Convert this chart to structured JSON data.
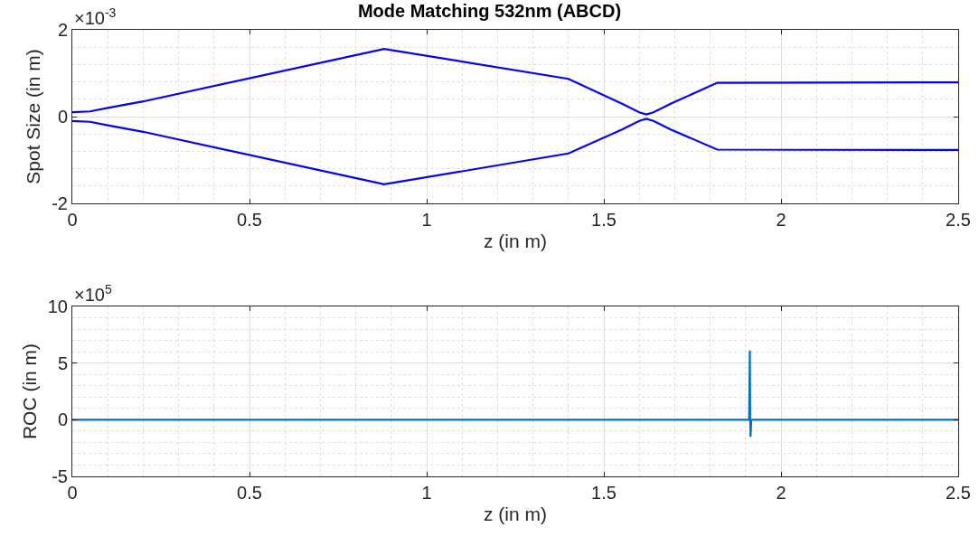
{
  "chart_data": [
    {
      "type": "line",
      "title": "Mode Matching 532nm (ABCD)",
      "xlabel": "z (in m)",
      "ylabel": "Spot Size (in m)",
      "annotations": [
        "×10$^{-3}$"
      ],
      "series": [
        {
          "color": "#0000ff",
          "x": [
            0,
            0.05,
            0.1,
            0.2,
            0.88,
            1.4,
            1.55,
            1.6,
            1.62,
            1.64,
            1.69,
            1.82,
            2.5
          ],
          "values": [
            0.1,
            0.12,
            0.2,
            0.35,
            1.56,
            0.87,
            0.3,
            0.1,
            0.05,
            0.1,
            0.3,
            0.78,
            0.79
          ]
        },
        {
          "color": "#0000ff",
          "x": [
            0,
            0.05,
            0.1,
            0.2,
            0.88,
            1.4,
            1.55,
            1.6,
            1.62,
            1.64,
            1.69,
            1.82,
            2.5
          ],
          "values": [
            -0.1,
            -0.12,
            -0.2,
            -0.35,
            -1.56,
            -0.85,
            -0.3,
            -0.1,
            -0.05,
            -0.1,
            -0.3,
            -0.76,
            -0.77
          ]
        }
      ],
      "xlim": [
        0,
        2.5
      ],
      "xticks": [
        0,
        0.5,
        1,
        1.5,
        2,
        2.5
      ],
      "ylim": [
        -2,
        2
      ],
      "yticks": [
        -2,
        0,
        2
      ],
      "grid": true,
      "line_style": "solid",
      "marker": "none"
    },
    {
      "type": "line",
      "xlabel": "z (in m)",
      "ylabel": "ROC (in m)",
      "annotations": [
        "×10$^{5}$"
      ],
      "series": [
        {
          "color": "#0072bd",
          "x": [
            0,
            1.91,
            1.912,
            1.913,
            1.914,
            1.916,
            2.5
          ],
          "values": [
            0,
            0,
            6.1,
            0,
            -1.5,
            0,
            0
          ]
        }
      ],
      "xlim": [
        0,
        2.5
      ],
      "xticks": [
        0,
        0.5,
        1,
        1.5,
        2,
        2.5
      ],
      "ylim": [
        -5,
        10
      ],
      "yticks": [
        -5,
        0,
        5,
        10
      ],
      "grid": true,
      "line_style": "solid",
      "marker": "none"
    }
  ]
}
